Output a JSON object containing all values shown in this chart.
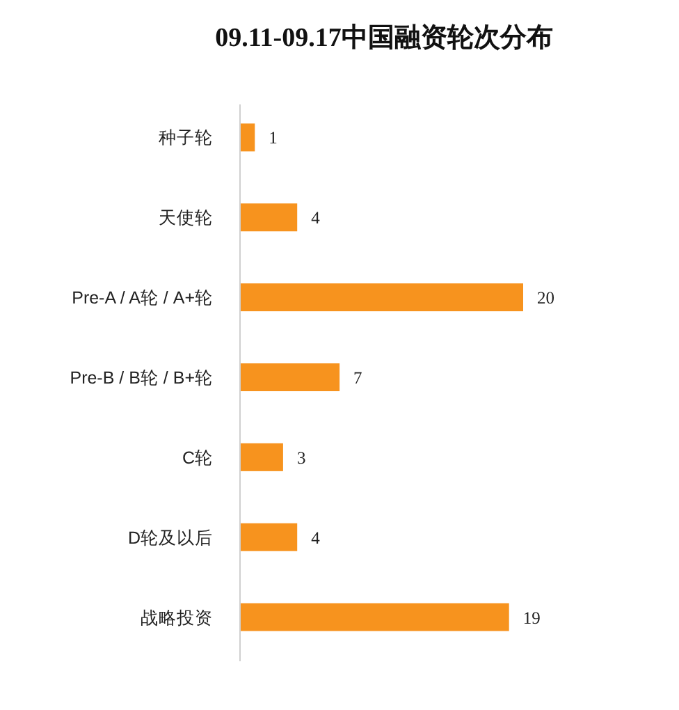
{
  "chart_data": {
    "type": "bar",
    "orientation": "horizontal",
    "title": "09.11-09.17中国融资轮次分布",
    "categories": [
      "种子轮",
      "天使轮",
      "Pre-A / A轮 / A+轮",
      "Pre-B / B轮 / B+轮",
      "C轮",
      "D轮及以后",
      "战略投资"
    ],
    "values": [
      1,
      4,
      20,
      7,
      3,
      4,
      19
    ],
    "color": "#f7931e",
    "data_labels": true
  }
}
